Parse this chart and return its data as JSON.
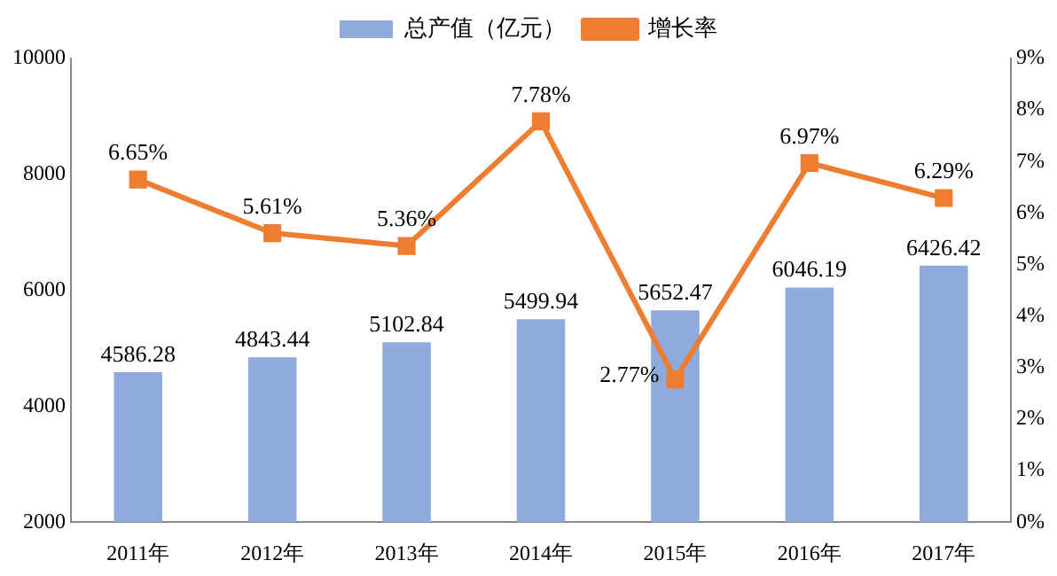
{
  "chart_data": {
    "type": "bar",
    "categories": [
      "2011年",
      "2012年",
      "2013年",
      "2014年",
      "2015年",
      "2016年",
      "2017年"
    ],
    "series": [
      {
        "name": "总产值（亿元）",
        "type": "bar",
        "color": "#8faadc",
        "values": [
          4586.28,
          4843.44,
          5102.84,
          5499.94,
          5652.47,
          6046.19,
          6426.42
        ]
      },
      {
        "name": "增长率",
        "type": "line",
        "axis": "y2",
        "color": "#ed7d31",
        "values": [
          6.65,
          5.61,
          5.36,
          7.78,
          2.77,
          6.97,
          6.29
        ],
        "value_labels": [
          "6.65%",
          "5.61%",
          "5.36%",
          "7.78%",
          "2.77%",
          "6.97%",
          "6.29%"
        ]
      }
    ],
    "ylim": [
      2000,
      10000
    ],
    "yticks": [
      2000,
      4000,
      6000,
      8000,
      10000
    ],
    "y2lim": [
      0,
      9
    ],
    "y2ticks": [
      {
        "value": 0,
        "label": "0%"
      },
      {
        "value": 1,
        "label": "1%"
      },
      {
        "value": 2,
        "label": "2%"
      },
      {
        "value": 3,
        "label": "3%"
      },
      {
        "value": 4,
        "label": "4%"
      },
      {
        "value": 5,
        "label": "5%"
      },
      {
        "value": 6,
        "label": "6%"
      },
      {
        "value": 7,
        "label": "7%"
      },
      {
        "value": 8,
        "label": "8%"
      },
      {
        "value": 9,
        "label": "9%"
      }
    ],
    "data_labels": true,
    "legend": "top",
    "grid": false,
    "marker": "square"
  }
}
